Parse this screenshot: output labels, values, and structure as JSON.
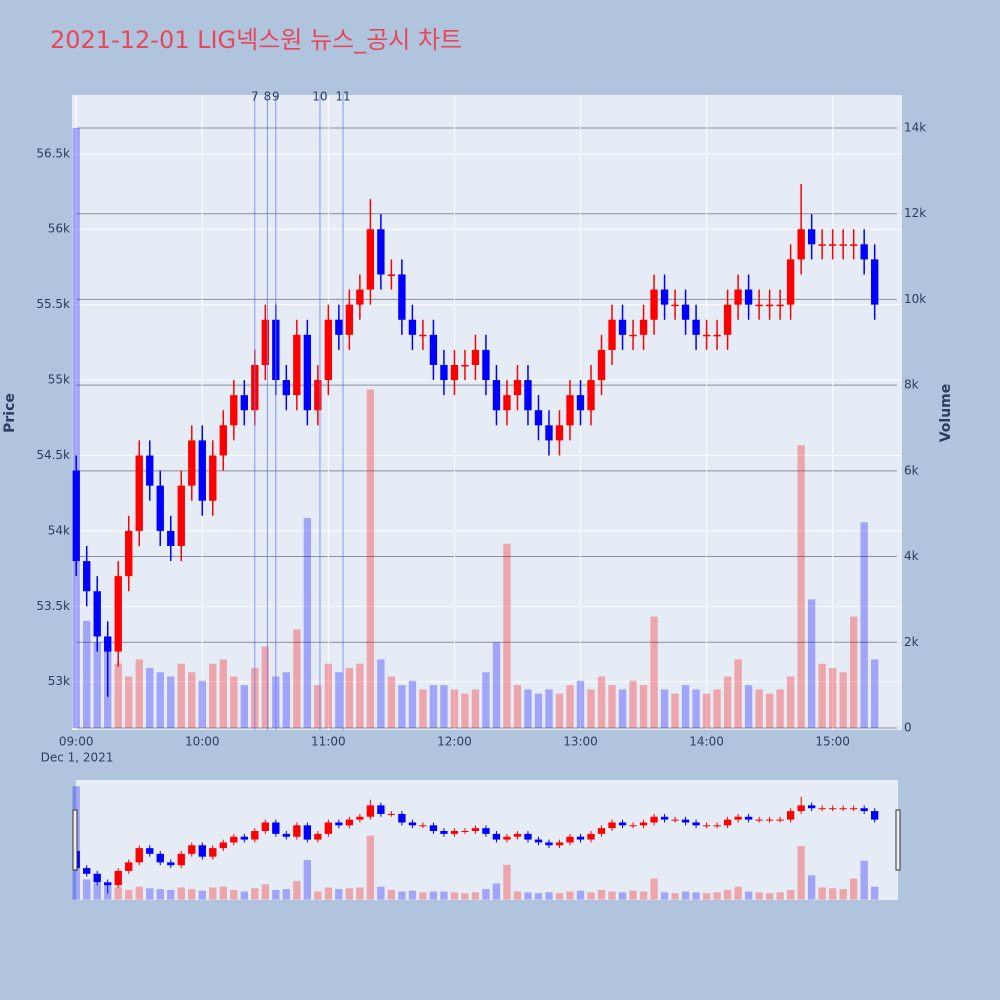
{
  "chart_data": {
    "type": "candlestick",
    "title": "2021-12-01 LIG넥스원 뉴스_공시 차트",
    "y_title": "Price",
    "y2_title": "Volume",
    "x_date_label": "Dec 1, 2021",
    "increasing_color": "#ff0000",
    "decreasing_color": "#0000ff",
    "news_color": "#6f7ff0",
    "x": [
      "09:00",
      "09:05",
      "09:10",
      "09:15",
      "09:20",
      "09:25",
      "09:30",
      "09:35",
      "09:40",
      "09:45",
      "09:50",
      "09:55",
      "10:00",
      "10:05",
      "10:10",
      "10:15",
      "10:20",
      "10:25",
      "10:30",
      "10:35",
      "10:40",
      "10:45",
      "10:50",
      "10:55",
      "11:00",
      "11:05",
      "11:10",
      "11:15",
      "11:20",
      "11:25",
      "11:30",
      "11:35",
      "11:40",
      "11:45",
      "11:50",
      "11:55",
      "12:00",
      "12:05",
      "12:10",
      "12:15",
      "12:20",
      "12:25",
      "12:30",
      "12:35",
      "12:40",
      "12:45",
      "12:50",
      "12:55",
      "13:00",
      "13:05",
      "13:10",
      "13:15",
      "13:20",
      "13:25",
      "13:30",
      "13:35",
      "13:40",
      "13:45",
      "13:50",
      "13:55",
      "14:00",
      "14:05",
      "14:10",
      "14:15",
      "14:20",
      "14:25",
      "14:30",
      "14:35",
      "14:40",
      "14:45",
      "14:50",
      "14:55",
      "15:00",
      "15:05",
      "15:10",
      "15:15",
      "15:20"
    ],
    "open": [
      54400,
      53800,
      53600,
      53300,
      53200,
      53700,
      54000,
      54500,
      54300,
      54000,
      53900,
      54300,
      54600,
      54200,
      54500,
      54700,
      54900,
      54800,
      55100,
      55400,
      55000,
      54900,
      55300,
      54800,
      55000,
      55400,
      55300,
      55500,
      55600,
      56000,
      55700,
      55700,
      55400,
      55300,
      55300,
      55100,
      55000,
      55100,
      55100,
      55200,
      55000,
      54800,
      54900,
      55000,
      54800,
      54700,
      54600,
      54700,
      54900,
      54800,
      55000,
      55200,
      55400,
      55300,
      55300,
      55400,
      55600,
      55500,
      55500,
      55400,
      55300,
      55300,
      55300,
      55500,
      55600,
      55500,
      55500,
      55500,
      55500,
      55800,
      56000,
      55900,
      55900,
      55900,
      55900,
      55900,
      55800
    ],
    "high": [
      54500,
      53900,
      53700,
      53400,
      53800,
      54100,
      54600,
      54600,
      54400,
      54100,
      54400,
      54700,
      54700,
      54600,
      54800,
      55000,
      55000,
      55200,
      55500,
      55500,
      55100,
      55400,
      55400,
      55100,
      55500,
      55500,
      55600,
      55700,
      56200,
      56100,
      55800,
      55800,
      55500,
      55400,
      55400,
      55200,
      55200,
      55200,
      55300,
      55300,
      55100,
      55000,
      55100,
      55100,
      54900,
      54800,
      54800,
      55000,
      55000,
      55100,
      55300,
      55500,
      55500,
      55400,
      55500,
      55700,
      55700,
      55600,
      55600,
      55500,
      55400,
      55400,
      55600,
      55700,
      55700,
      55600,
      55600,
      55600,
      55900,
      56300,
      56100,
      56000,
      56000,
      56000,
      56000,
      56000,
      55900
    ],
    "low": [
      53700,
      53500,
      53200,
      52900,
      53100,
      53600,
      53900,
      54200,
      53900,
      53800,
      53800,
      54200,
      54100,
      54100,
      54400,
      54600,
      54700,
      54700,
      55000,
      54900,
      54800,
      54800,
      54700,
      54700,
      54900,
      55200,
      55200,
      55400,
      55500,
      55600,
      55600,
      55300,
      55200,
      55200,
      55000,
      54900,
      54900,
      55000,
      55000,
      54900,
      54700,
      54700,
      54800,
      54700,
      54600,
      54500,
      54500,
      54600,
      54700,
      54700,
      54900,
      55100,
      55200,
      55200,
      55200,
      55300,
      55400,
      55400,
      55300,
      55200,
      55200,
      55200,
      55200,
      55400,
      55400,
      55400,
      55400,
      55400,
      55400,
      55700,
      55800,
      55800,
      55800,
      55800,
      55800,
      55700,
      55400
    ],
    "close": [
      53800,
      53600,
      53300,
      53200,
      53700,
      54000,
      54500,
      54300,
      54000,
      53900,
      54300,
      54600,
      54200,
      54500,
      54700,
      54900,
      54800,
      55100,
      55400,
      55000,
      54900,
      55300,
      54800,
      55000,
      55400,
      55300,
      55500,
      55600,
      56000,
      55700,
      55700,
      55400,
      55300,
      55300,
      55100,
      55000,
      55100,
      55100,
      55200,
      55000,
      54800,
      54900,
      55000,
      54800,
      54700,
      54600,
      54700,
      54900,
      54800,
      55000,
      55200,
      55400,
      55300,
      55300,
      55400,
      55600,
      55500,
      55500,
      55400,
      55300,
      55300,
      55300,
      55500,
      55600,
      55500,
      55500,
      55500,
      55500,
      55800,
      56000,
      55900,
      55900,
      55900,
      55900,
      55900,
      55800,
      55500
    ],
    "volume": [
      14000,
      2500,
      2000,
      1800,
      1500,
      1200,
      1600,
      1400,
      1300,
      1200,
      1500,
      1300,
      1100,
      1500,
      1600,
      1200,
      1000,
      1400,
      1900,
      1200,
      1300,
      2300,
      4900,
      1000,
      1500,
      1300,
      1400,
      1500,
      7900,
      1600,
      1200,
      1000,
      1100,
      900,
      1000,
      1000,
      900,
      800,
      900,
      1300,
      2000,
      4300,
      1000,
      900,
      800,
      900,
      800,
      1000,
      1100,
      900,
      1200,
      1000,
      900,
      1100,
      1000,
      2600,
      900,
      800,
      1000,
      900,
      800,
      900,
      1200,
      1600,
      1000,
      900,
      800,
      900,
      1200,
      6600,
      3000,
      1500,
      1400,
      1300,
      2600,
      4800,
      1600
    ],
    "news": [
      {
        "label": "7",
        "x": "10:25"
      },
      {
        "label": "8",
        "x": "10:31"
      },
      {
        "label": "9",
        "x": "10:35"
      },
      {
        "label": "10",
        "x": "10:56"
      },
      {
        "label": "11",
        "x": "11:07"
      }
    ],
    "xlim": [
      "08:58",
      "15:33"
    ],
    "xticks": [
      "09:00",
      "10:00",
      "11:00",
      "12:00",
      "13:00",
      "14:00",
      "15:00"
    ],
    "ylim": [
      52680,
      56890
    ],
    "yticks": [
      {
        "value": 53000,
        "label": "53k"
      },
      {
        "value": 53500,
        "label": "53.5k"
      },
      {
        "value": 54000,
        "label": "54k"
      },
      {
        "value": 54500,
        "label": "54.5k"
      },
      {
        "value": 55000,
        "label": "55k"
      },
      {
        "value": 55500,
        "label": "55.5k"
      },
      {
        "value": 56000,
        "label": "56k"
      },
      {
        "value": 56500,
        "label": "56.5k"
      }
    ],
    "y2lim": [
      -47,
      14770
    ],
    "y2ticks": [
      0,
      {
        "value": 2000,
        "label": "2k"
      },
      {
        "value": 4000,
        "label": "4k"
      },
      {
        "value": 6000,
        "label": "6k"
      },
      {
        "value": 8000,
        "label": "8k"
      },
      {
        "value": 10000,
        "label": "10k"
      },
      {
        "value": 12000,
        "label": "12k"
      },
      {
        "value": 14000,
        "label": "14k"
      }
    ],
    "grid": true,
    "rangeslider": true
  }
}
